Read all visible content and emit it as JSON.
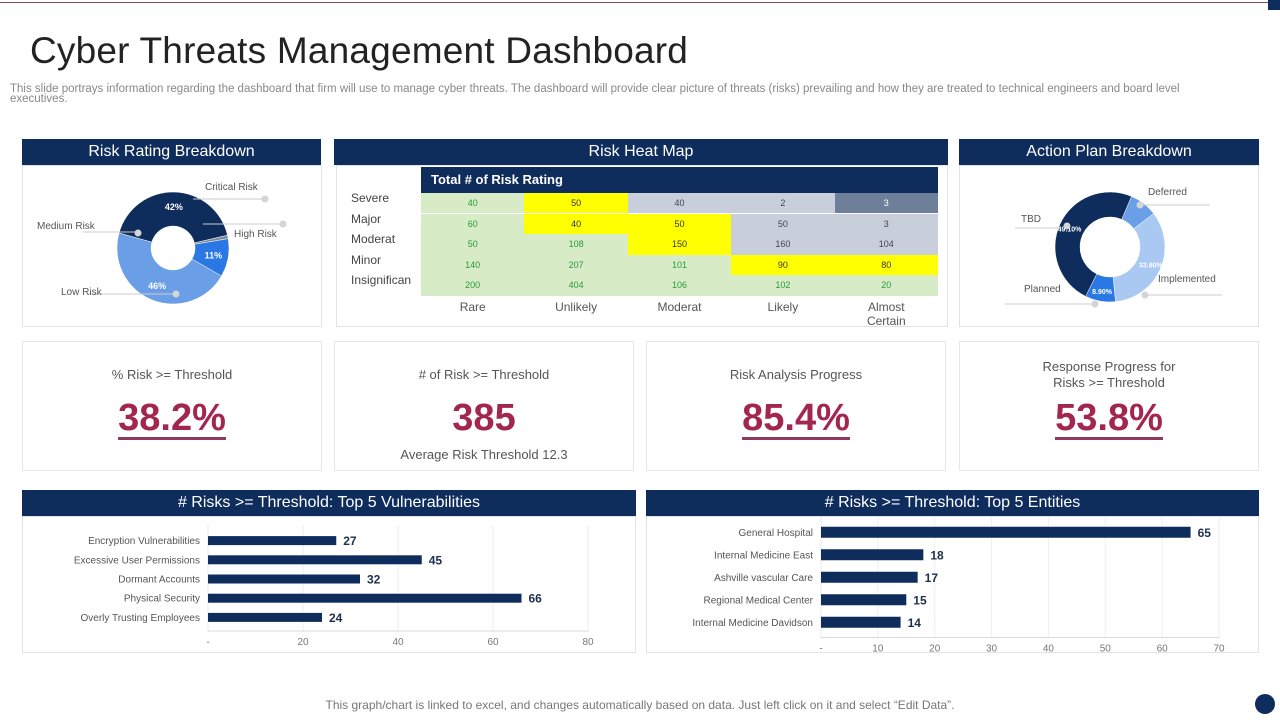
{
  "title": "Cyber Threats Management Dashboard",
  "subtitle": "This slide portrays information regarding the dashboard that firm will use to manage cyber threats. The dashboard will provide clear picture of threats (risks) prevailing and how they  are treated to technical engineers and board level executives.",
  "footer_note": "This graph/chart is linked to excel,  and changes automatically based on data. Just left click on it and select “Edit Data”.",
  "colors": {
    "navy": "#0f2d5c",
    "accent": "#a3264f",
    "green_cell": "#d6ebc6",
    "yellow_cell": "#ffff00",
    "grey_cell": "#c8cfda",
    "dark_grey_cell": "#6e7f9a"
  },
  "panels": {
    "risk_rating": "Risk Rating Breakdown",
    "heat_map": "Risk Heat Map",
    "action_plan": "Action Plan Breakdown",
    "vulnerabilities": "# Risks >= Threshold: Top 5 Vulnerabilities",
    "entities": "# Risks >= Threshold: Top 5 Entities"
  },
  "kpis": [
    {
      "label": "% Risk >= Threshold",
      "value": "38.2%"
    },
    {
      "label": "# of Risk >= Threshold",
      "value": "385",
      "sub": "Average  Risk Threshold  12.3"
    },
    {
      "label": "Risk Analysis Progress",
      "value": "85.4%"
    },
    {
      "label": "Response Progress for Risks >= Threshold",
      "label_line1": "Response Progress for",
      "label_line2": "Risks >= Threshold",
      "value": "53.8%"
    }
  ],
  "chart_data": [
    {
      "type": "pie",
      "title": "Risk Rating Breakdown",
      "donut": true,
      "slices": [
        {
          "label": "Low Risk",
          "value": 46,
          "data_label": "46%",
          "color": "#6a9fe8"
        },
        {
          "label": "Medium Risk",
          "value": 42,
          "data_label": "42%",
          "color": "#0f2d5c"
        },
        {
          "label": "Critical Risk",
          "value": 1,
          "data_label": "",
          "color": "#7f8a99"
        },
        {
          "label": "High Risk",
          "value": 11,
          "data_label": "11%",
          "color": "#2b78e4"
        }
      ]
    },
    {
      "type": "heatmap",
      "title": "Risk Heat Map",
      "header": "Total # of Risk Rating",
      "rows": [
        "Severe",
        "Major",
        "Moderat",
        "Minor",
        "Insignifican"
      ],
      "columns": [
        "Rare",
        "Unlikely",
        "Moderat",
        "Likely",
        "Almost Certain"
      ],
      "values": [
        [
          40,
          50,
          40,
          2,
          3
        ],
        [
          60,
          40,
          50,
          50,
          3
        ],
        [
          50,
          108,
          150,
          160,
          104
        ],
        [
          140,
          207,
          101,
          90,
          80
        ],
        [
          200,
          404,
          106,
          102,
          20
        ]
      ],
      "levels": [
        [
          "low",
          "medium",
          "high",
          "high",
          "critical"
        ],
        [
          "low",
          "medium",
          "medium",
          "high",
          "high"
        ],
        [
          "low",
          "low",
          "medium",
          "high",
          "high"
        ],
        [
          "low",
          "low",
          "low",
          "medium",
          "medium"
        ],
        [
          "low",
          "low",
          "low",
          "low",
          "low"
        ]
      ]
    },
    {
      "type": "pie",
      "title": "Action Plan Breakdown",
      "donut": true,
      "slices": [
        {
          "label": "Deferred",
          "value": 8.2,
          "data_label": "",
          "color": "#6a9fe8"
        },
        {
          "label": "Implemented",
          "value": 33.8,
          "data_label": "33.80%",
          "color": "#a9c8f2"
        },
        {
          "label": "Planned",
          "value": 8.9,
          "data_label": "8.90%",
          "color": "#2b78e4"
        },
        {
          "label": "TBD",
          "value": 49.1,
          "data_label": "49.10%",
          "color": "#0f2d5c"
        }
      ]
    },
    {
      "type": "bar",
      "orientation": "horizontal",
      "title": "# Risks >= Threshold: Top 5 Vulnerabilities",
      "categories": [
        "Encryption Vulnerabilities",
        "Excessive User Permissions",
        "Dormant Accounts",
        "Physical Security",
        "Overly Trusting Employees"
      ],
      "values": [
        27,
        45,
        32,
        66,
        24
      ],
      "xlim": [
        0,
        80
      ],
      "xticks": [
        "-",
        "20",
        "40",
        "60",
        "80"
      ],
      "grid": true
    },
    {
      "type": "bar",
      "orientation": "horizontal",
      "title": "# Risks >= Threshold: Top 5 Entities",
      "categories": [
        "General Hospital",
        "Internal Medicine East",
        "Ashville vascular Care",
        "Regional Medical Center",
        "Internal Medicine Davidson"
      ],
      "values": [
        65,
        18,
        17,
        15,
        14
      ],
      "xlim": [
        0,
        70
      ],
      "xticks": [
        "-",
        "10",
        "20",
        "30",
        "40",
        "50",
        "60",
        "70"
      ],
      "grid": true
    }
  ]
}
